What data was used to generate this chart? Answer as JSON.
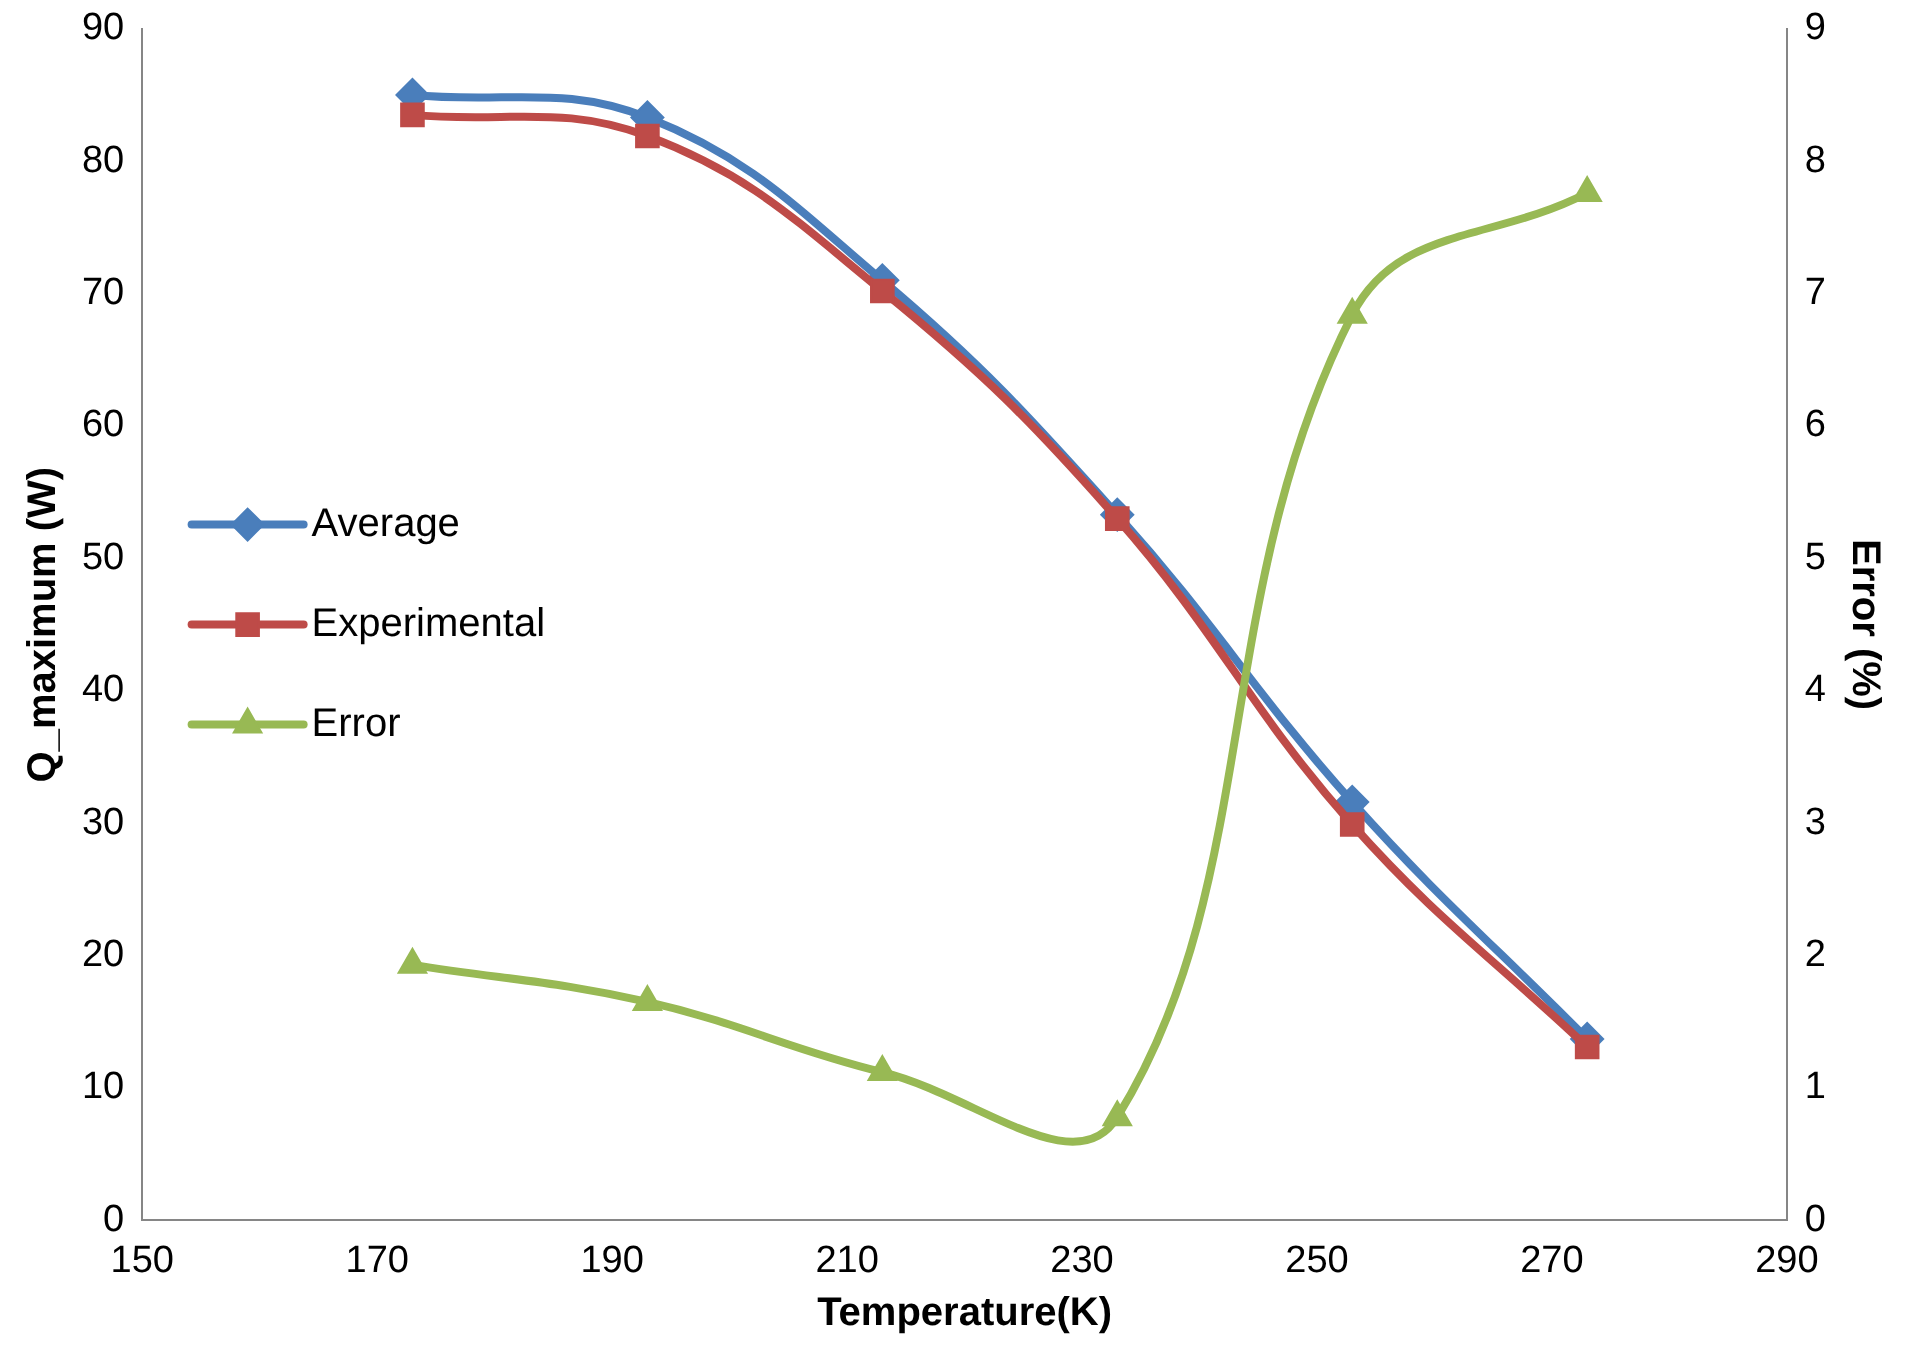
{
  "chart_data": {
    "type": "line",
    "xlabel": "Temperature(K)",
    "ylabel": "Q_maximum (W)",
    "y2label": "Error (%)",
    "x": [
      173,
      193,
      213,
      233,
      253,
      273
    ],
    "xlim": [
      150,
      290
    ],
    "xticks": [
      150,
      170,
      190,
      210,
      230,
      250,
      270,
      290
    ],
    "ylim": [
      0,
      90
    ],
    "yticks": [
      0,
      10,
      20,
      30,
      40,
      50,
      60,
      70,
      80,
      90
    ],
    "y2lim": [
      0,
      9
    ],
    "y2ticks": [
      0,
      1,
      2,
      3,
      4,
      5,
      6,
      7,
      8,
      9
    ],
    "grid": false,
    "legend": "left",
    "line_style": "solid",
    "series": [
      {
        "name": "Average",
        "color": "#4a7ebb",
        "marker": "diamond",
        "values": [
          85.0,
          83.3,
          71.0,
          53.3,
          31.6,
          13.7
        ]
      },
      {
        "name": "Experimental",
        "color": "#be4b48",
        "marker": "square",
        "values": [
          83.5,
          81.9,
          70.2,
          53.0,
          29.9,
          13.1
        ]
      },
      {
        "name": "Error",
        "color": "#98b954",
        "marker": "triangle",
        "axis": "y2",
        "values": [
          1.93,
          1.65,
          1.12,
          0.78,
          6.84,
          7.76
        ]
      }
    ]
  }
}
